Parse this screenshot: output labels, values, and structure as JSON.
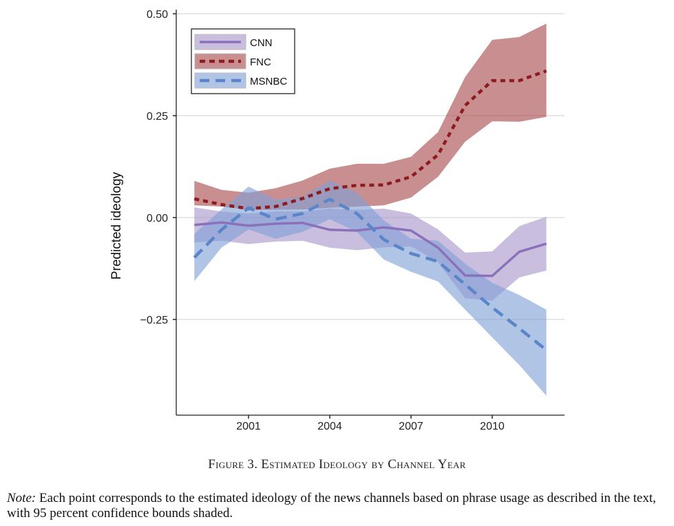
{
  "chart_data": {
    "type": "line",
    "title": "",
    "xlabel": "",
    "ylabel": "Predicted ideology",
    "xlim": [
      1998.2,
      2012.7
    ],
    "ylim": [
      -0.485,
      0.52
    ],
    "x_ticks": [
      2001,
      2004,
      2007,
      2010
    ],
    "x_tick_labels": [
      "2001",
      "2004",
      "2007",
      "2010"
    ],
    "y_ticks": [
      0.5,
      0.25,
      0.0,
      -0.25
    ],
    "y_tick_labels": [
      "0.50",
      "0.25",
      "0.00",
      "−0.25"
    ],
    "grid": "horizontal",
    "legend_position": "top-left",
    "x": [
      1999,
      2000,
      2001,
      2002,
      2003,
      2004,
      2005,
      2006,
      2007,
      2008,
      2009,
      2010,
      2011,
      2012
    ],
    "series": [
      {
        "name": "CNN",
        "line_style": "solid",
        "line_color": "#8a72ba",
        "band_color": "#a996cc",
        "values": [
          -0.018,
          -0.012,
          -0.02,
          -0.015,
          -0.013,
          -0.03,
          -0.032,
          -0.024,
          -0.032,
          -0.074,
          -0.142,
          -0.143,
          -0.084,
          -0.064
        ],
        "lower": [
          -0.061,
          -0.057,
          -0.065,
          -0.059,
          -0.057,
          -0.074,
          -0.08,
          -0.073,
          -0.071,
          -0.11,
          -0.198,
          -0.204,
          -0.147,
          -0.13
        ],
        "upper": [
          0.025,
          0.015,
          0.01,
          0.015,
          0.015,
          0.022,
          0.019,
          0.022,
          0.01,
          -0.029,
          -0.086,
          -0.083,
          -0.021,
          0.002
        ]
      },
      {
        "name": "FNC",
        "line_style": "dotted",
        "line_color": "#8e1c1f",
        "band_color": "#a84a4c",
        "values": [
          0.046,
          0.032,
          0.022,
          0.027,
          0.047,
          0.071,
          0.079,
          0.08,
          0.1,
          0.154,
          0.275,
          0.336,
          0.336,
          0.36
        ],
        "lower": [
          0.03,
          0.027,
          0.019,
          0.019,
          0.02,
          0.024,
          0.027,
          0.03,
          0.049,
          0.1,
          0.186,
          0.236,
          0.235,
          0.247
        ],
        "upper": [
          0.09,
          0.068,
          0.061,
          0.072,
          0.091,
          0.12,
          0.132,
          0.132,
          0.149,
          0.21,
          0.345,
          0.436,
          0.443,
          0.476
        ]
      },
      {
        "name": "MSNBC",
        "line_style": "dashed",
        "line_color": "#5a86c9",
        "band_color": "#7f9fd6",
        "values": [
          -0.098,
          -0.03,
          0.024,
          -0.004,
          0.01,
          0.045,
          0.01,
          -0.054,
          -0.088,
          -0.108,
          -0.164,
          -0.221,
          -0.272,
          -0.325
        ],
        "lower": [
          -0.156,
          -0.074,
          -0.029,
          -0.052,
          -0.035,
          -0.004,
          -0.035,
          -0.103,
          -0.133,
          -0.157,
          -0.226,
          -0.294,
          -0.362,
          -0.437
        ],
        "upper": [
          -0.04,
          0.02,
          0.076,
          0.044,
          0.052,
          0.091,
          0.061,
          -0.007,
          -0.052,
          -0.057,
          -0.113,
          -0.16,
          -0.19,
          -0.226
        ]
      }
    ]
  },
  "legend": {
    "items": [
      {
        "label": "CNN"
      },
      {
        "label": "FNC"
      },
      {
        "label": "MSNBC"
      }
    ]
  },
  "caption": "Figure 3. Estimated Ideology by Channel Year",
  "note": {
    "label": "Note:",
    "text": " Each point corresponds to the estimated ideology of the news channels based on phrase usage as described in the text, with 95 percent confidence bounds shaded."
  }
}
